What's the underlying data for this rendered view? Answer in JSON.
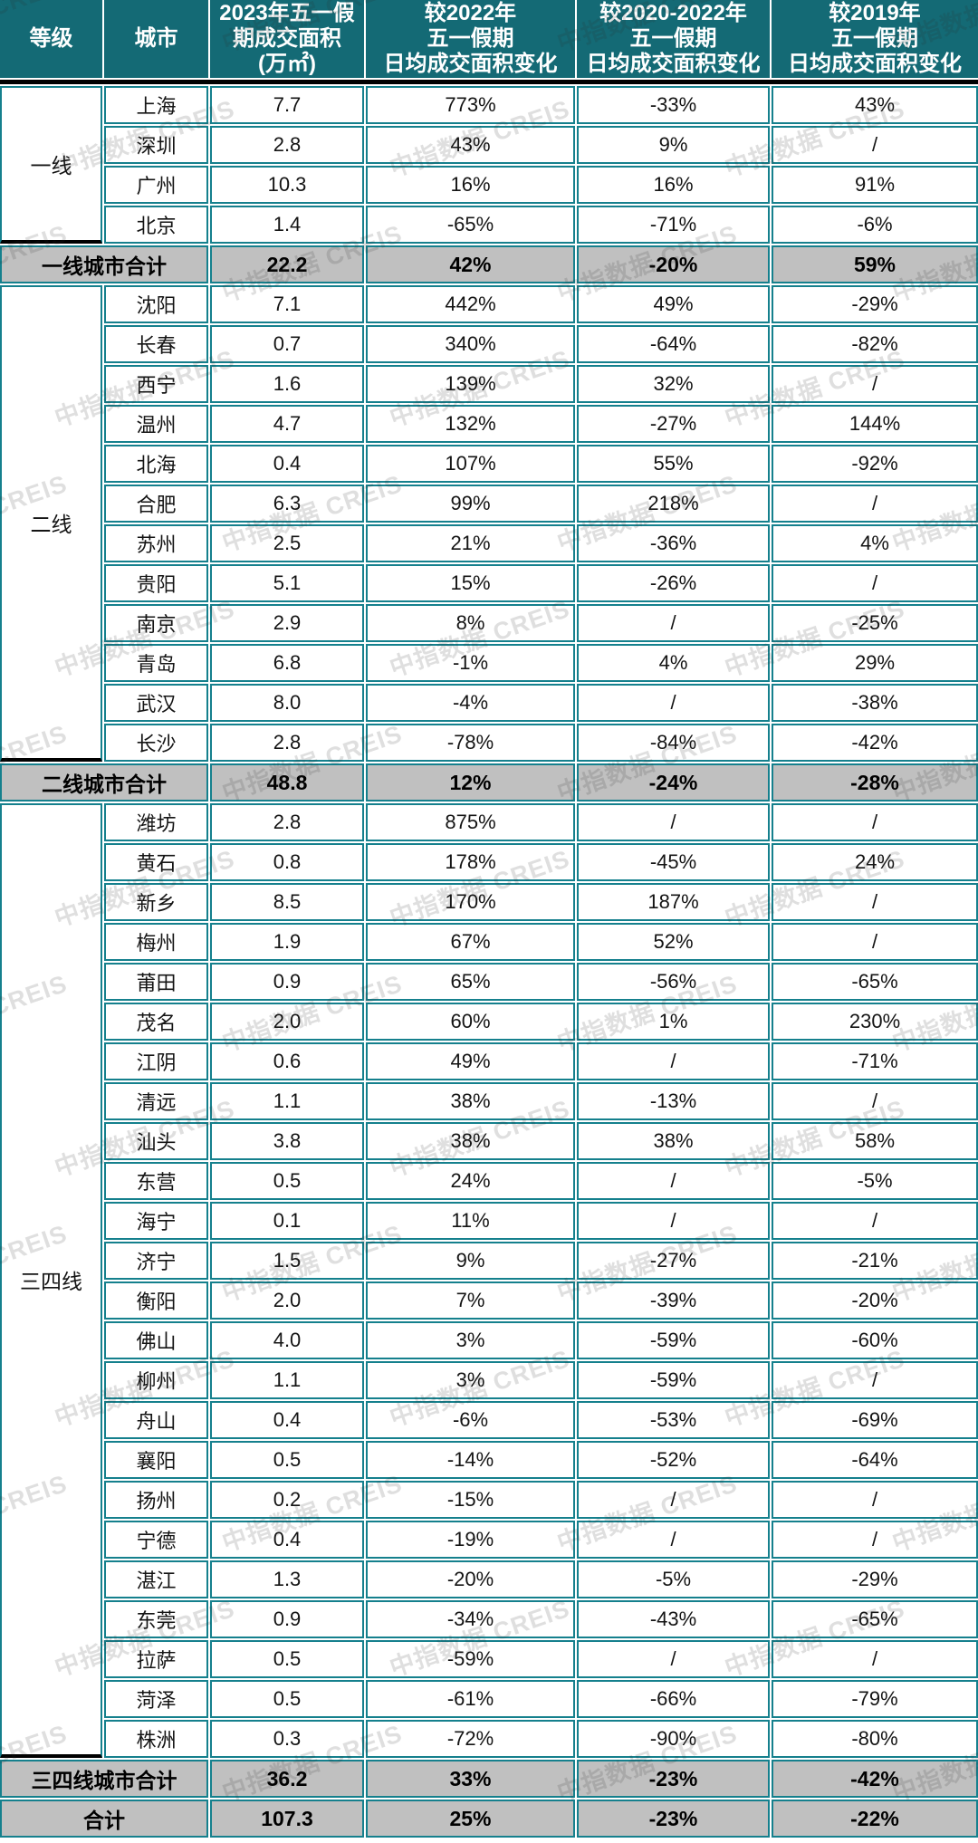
{
  "header": {
    "columns": [
      "等级",
      "城市",
      "2023年五一假\n期成交面积\n(万㎡)",
      "较2022年\n五一假期\n日均成交面积变化",
      "较2020-2022年\n五一假期\n日均成交面积变化",
      "较2019年\n五一假期\n日均成交面积变化"
    ]
  },
  "watermark": {
    "text": "中指数据 CREIS"
  },
  "colors": {
    "header_bg": "#146a75",
    "cell_border": "#15808d",
    "summary_bg": "#c0c0c0",
    "header_text": "#ffffff",
    "black_rule": "#000000",
    "body_text": "#141414"
  },
  "chart_data": {
    "type": "table",
    "columns": [
      "等级",
      "城市",
      "2023年五一假期成交面积(万㎡)",
      "较2022年五一假期日均成交面积变化",
      "较2020-2022年五一假期日均成交面积变化",
      "较2019年五一假期日均成交面积变化"
    ],
    "sections": [
      {
        "tier": "一线",
        "rows": [
          [
            "上海",
            "7.7",
            "773%",
            "-33%",
            "43%"
          ],
          [
            "深圳",
            "2.8",
            "43%",
            "9%",
            "/"
          ],
          [
            "广州",
            "10.3",
            "16%",
            "16%",
            "91%"
          ],
          [
            "北京",
            "1.4",
            "-65%",
            "-71%",
            "-6%"
          ]
        ],
        "summary": [
          "一线城市合计",
          "22.2",
          "42%",
          "-20%",
          "59%"
        ]
      },
      {
        "tier": "二线",
        "rows": [
          [
            "沈阳",
            "7.1",
            "442%",
            "49%",
            "-29%"
          ],
          [
            "长春",
            "0.7",
            "340%",
            "-64%",
            "-82%"
          ],
          [
            "西宁",
            "1.6",
            "139%",
            "32%",
            "/"
          ],
          [
            "温州",
            "4.7",
            "132%",
            "-27%",
            "144%"
          ],
          [
            "北海",
            "0.4",
            "107%",
            "55%",
            "-92%"
          ],
          [
            "合肥",
            "6.3",
            "99%",
            "218%",
            "/"
          ],
          [
            "苏州",
            "2.5",
            "21%",
            "-36%",
            "4%"
          ],
          [
            "贵阳",
            "5.1",
            "15%",
            "-26%",
            "/"
          ],
          [
            "南京",
            "2.9",
            "8%",
            "/",
            "-25%"
          ],
          [
            "青岛",
            "6.8",
            "-1%",
            "4%",
            "29%"
          ],
          [
            "武汉",
            "8.0",
            "-4%",
            "/",
            "-38%"
          ],
          [
            "长沙",
            "2.8",
            "-78%",
            "-84%",
            "-42%"
          ]
        ],
        "summary": [
          "二线城市合计",
          "48.8",
          "12%",
          "-24%",
          "-28%"
        ]
      },
      {
        "tier": "三四线",
        "rows": [
          [
            "潍坊",
            "2.8",
            "875%",
            "/",
            "/"
          ],
          [
            "黄石",
            "0.8",
            "178%",
            "-45%",
            "24%"
          ],
          [
            "新乡",
            "8.5",
            "170%",
            "187%",
            "/"
          ],
          [
            "梅州",
            "1.9",
            "67%",
            "52%",
            "/"
          ],
          [
            "莆田",
            "0.9",
            "65%",
            "-56%",
            "-65%"
          ],
          [
            "茂名",
            "2.0",
            "60%",
            "1%",
            "230%"
          ],
          [
            "江阴",
            "0.6",
            "49%",
            "/",
            "-71%"
          ],
          [
            "清远",
            "1.1",
            "38%",
            "-13%",
            "/"
          ],
          [
            "汕头",
            "3.8",
            "38%",
            "38%",
            "58%"
          ],
          [
            "东营",
            "0.5",
            "24%",
            "/",
            "-5%"
          ],
          [
            "海宁",
            "0.1",
            "11%",
            "/",
            "/"
          ],
          [
            "济宁",
            "1.5",
            "9%",
            "-27%",
            "-21%"
          ],
          [
            "衡阳",
            "2.0",
            "7%",
            "-39%",
            "-20%"
          ],
          [
            "佛山",
            "4.0",
            "3%",
            "-59%",
            "-60%"
          ],
          [
            "柳州",
            "1.1",
            "3%",
            "-59%",
            "/"
          ],
          [
            "舟山",
            "0.4",
            "-6%",
            "-53%",
            "-69%"
          ],
          [
            "襄阳",
            "0.5",
            "-14%",
            "-52%",
            "-64%"
          ],
          [
            "扬州",
            "0.2",
            "-15%",
            "/",
            "/"
          ],
          [
            "宁德",
            "0.4",
            "-19%",
            "/",
            "/"
          ],
          [
            "湛江",
            "1.3",
            "-20%",
            "-5%",
            "-29%"
          ],
          [
            "东莞",
            "0.9",
            "-34%",
            "-43%",
            "-65%"
          ],
          [
            "拉萨",
            "0.5",
            "-59%",
            "/",
            "/"
          ],
          [
            "菏泽",
            "0.5",
            "-61%",
            "-66%",
            "-79%"
          ],
          [
            "株洲",
            "0.3",
            "-72%",
            "-90%",
            "-80%"
          ]
        ],
        "summary": [
          "三四线城市合计",
          "36.2",
          "33%",
          "-23%",
          "-42%"
        ]
      }
    ],
    "total": [
      "合计",
      "107.3",
      "25%",
      "-23%",
      "-22%"
    ]
  }
}
